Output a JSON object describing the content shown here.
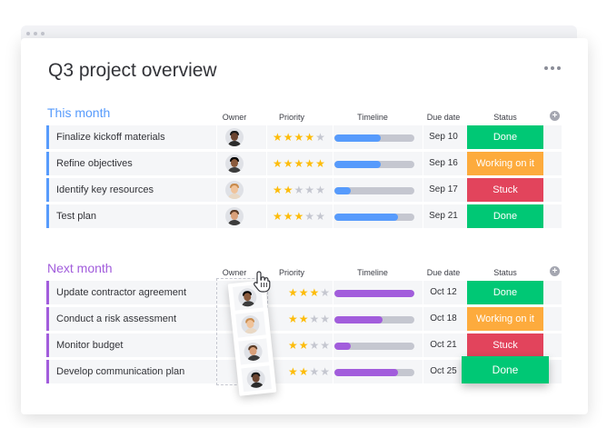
{
  "page": {
    "title": "Q3 project overview"
  },
  "columns": {
    "owner": "Owner",
    "priority": "Priority",
    "timeline": "Timeline",
    "due": "Due date",
    "status": "Status"
  },
  "groups": [
    {
      "title": "This month",
      "color": "#579bfc",
      "rows": [
        {
          "name": "Finalize kickoff materials",
          "stars": 4,
          "progress": 0.58,
          "due": "Sep 10",
          "status": "Done",
          "status_color": "#00c875"
        },
        {
          "name": "Refine objectives",
          "stars": 5,
          "progress": 0.58,
          "due": "Sep 16",
          "status": "Working on it",
          "status_color": "#fdab3d"
        },
        {
          "name": "Identify key resources",
          "stars": 2,
          "progress": 0.2,
          "due": "Sep 17",
          "status": "Stuck",
          "status_color": "#e2445c"
        },
        {
          "name": "Test plan",
          "stars": 3,
          "progress": 0.8,
          "due": "Sep 21",
          "status": "Done",
          "status_color": "#00c875"
        }
      ]
    },
    {
      "title": "Next month",
      "color": "#a25ddc",
      "rows": [
        {
          "name": "Update contractor agreement",
          "stars": 3,
          "progress": 1.0,
          "due": "Oct 12",
          "status": "Done",
          "status_color": "#00c875"
        },
        {
          "name": "Conduct a risk assessment",
          "stars": 2,
          "progress": 0.6,
          "due": "Oct 18",
          "status": "Working on it",
          "status_color": "#fdab3d"
        },
        {
          "name": "Monitor budget",
          "stars": 2,
          "progress": 0.2,
          "due": "Oct 21",
          "status": "Stuck",
          "status_color": "#e2445c"
        },
        {
          "name": "Develop communication plan",
          "stars": 2,
          "progress": 0.8,
          "due": "Oct 25",
          "status": "Done",
          "status_color": "#00c875"
        }
      ]
    }
  ],
  "icons": {
    "more": "more-horizontal-icon",
    "add": "plus-circle-icon",
    "cursor": "hand-cursor-icon"
  }
}
